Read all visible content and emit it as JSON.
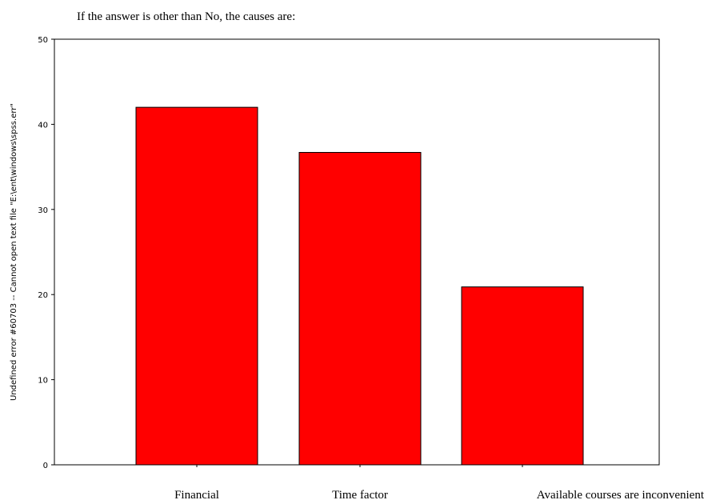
{
  "chart_data": {
    "type": "bar",
    "title": "If the answer is other than No, the causes are:",
    "ylabel": "Undefined error #60703 -- Cannot open text file \"E:\\ent\\windows\\spss.err\"",
    "xlabel": "",
    "categories": [
      "Financial",
      "Time factor",
      "Available courses are inconvenient"
    ],
    "values": [
      42,
      36.7,
      20.9
    ],
    "ylim": [
      0,
      50
    ],
    "yticks": [
      0,
      10,
      20,
      30,
      40,
      50
    ],
    "ytick_labels": [
      "0",
      "10",
      "20",
      "30",
      "40",
      "50"
    ],
    "bar_color": "#ff0000",
    "grid": false,
    "legend": "none"
  }
}
